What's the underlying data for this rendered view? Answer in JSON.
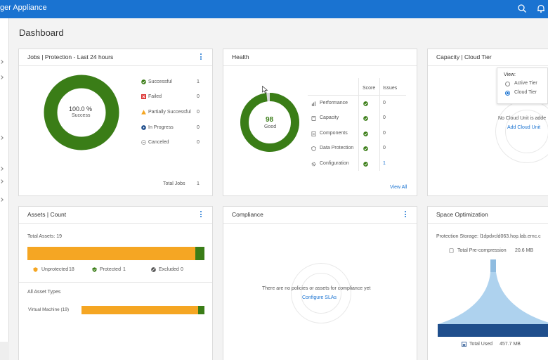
{
  "app": {
    "title": "ger Appliance"
  },
  "topbar": {
    "search_icon": "search-icon",
    "bell_icon": "bell-icon"
  },
  "page": {
    "title": "Dashboard"
  },
  "colors": {
    "accent": "#1a73d1",
    "success": "#3a7d17",
    "warning": "#f5a623",
    "storage_light": "#aed2ee",
    "storage_dark": "#1f4e8c"
  },
  "jobs": {
    "title": "Jobs | Protection - Last 24 hours",
    "donut_value": "100.0 %",
    "donut_label": "Success",
    "success_fraction": 1.0,
    "legend": [
      {
        "icon": "check-circle-icon",
        "label": "Successful",
        "count": "1"
      },
      {
        "icon": "failed-icon",
        "label": "Failed",
        "count": "0"
      },
      {
        "icon": "warning-icon",
        "label": "Partially Successful",
        "count": "0"
      },
      {
        "icon": "in-progress-icon",
        "label": "In Progress",
        "count": "0"
      },
      {
        "icon": "canceled-icon",
        "label": "Canceled",
        "count": "0"
      }
    ],
    "total_label": "Total Jobs",
    "total_value": "1"
  },
  "health": {
    "title": "Health",
    "score": "98",
    "score_label": "Good",
    "score_fraction": 0.98,
    "col_score": "Score",
    "col_issues": "Issues",
    "rows": [
      {
        "icon": "bar-chart-icon",
        "label": "Performance",
        "issues": "0"
      },
      {
        "icon": "capacity-icon",
        "label": "Capacity",
        "issues": "0"
      },
      {
        "icon": "components-icon",
        "label": "Components",
        "issues": "0"
      },
      {
        "icon": "shield-icon",
        "label": "Data Protection",
        "issues": "0"
      },
      {
        "icon": "gear-icon",
        "label": "Configuration",
        "issues": "1"
      }
    ],
    "view_all": "View All"
  },
  "capacity": {
    "title": "Capacity | Cloud Tier",
    "view_label": "View:",
    "options": [
      {
        "label": "Active Tier",
        "selected": false
      },
      {
        "label": "Cloud Tier",
        "selected": true
      }
    ],
    "empty_text": "No Cloud Unit is adde",
    "add_link": "Add Cloud Unit"
  },
  "assets": {
    "title": "Assets | Count",
    "total_label": "Total Assets: 19",
    "protected_fraction": 0.0526,
    "legend": [
      {
        "icon": "unprotected-shield-icon",
        "label": "Unprotected",
        "count": "18"
      },
      {
        "icon": "protected-shield-icon",
        "label": "Protected",
        "count": "1"
      },
      {
        "icon": "excluded-icon",
        "label": "Excluded",
        "count": "0"
      }
    ],
    "types_title": "All Asset Types",
    "types": [
      {
        "label": "Virtual Machine (19)",
        "protected_fraction": 0.0526
      }
    ]
  },
  "compliance": {
    "title": "Compliance",
    "empty_text": "There are no policies or assets for compliance yet",
    "link": "Configure SLAs"
  },
  "space": {
    "title": "Space Optimization",
    "storage_label": "Protection Storage: l1dpdvcld063.hop.lab.emc.c",
    "pre_label": "Total Pre-compression",
    "pre_value": "20.6 MB",
    "used_label": "Total Used",
    "used_value": "457.7 MB"
  }
}
